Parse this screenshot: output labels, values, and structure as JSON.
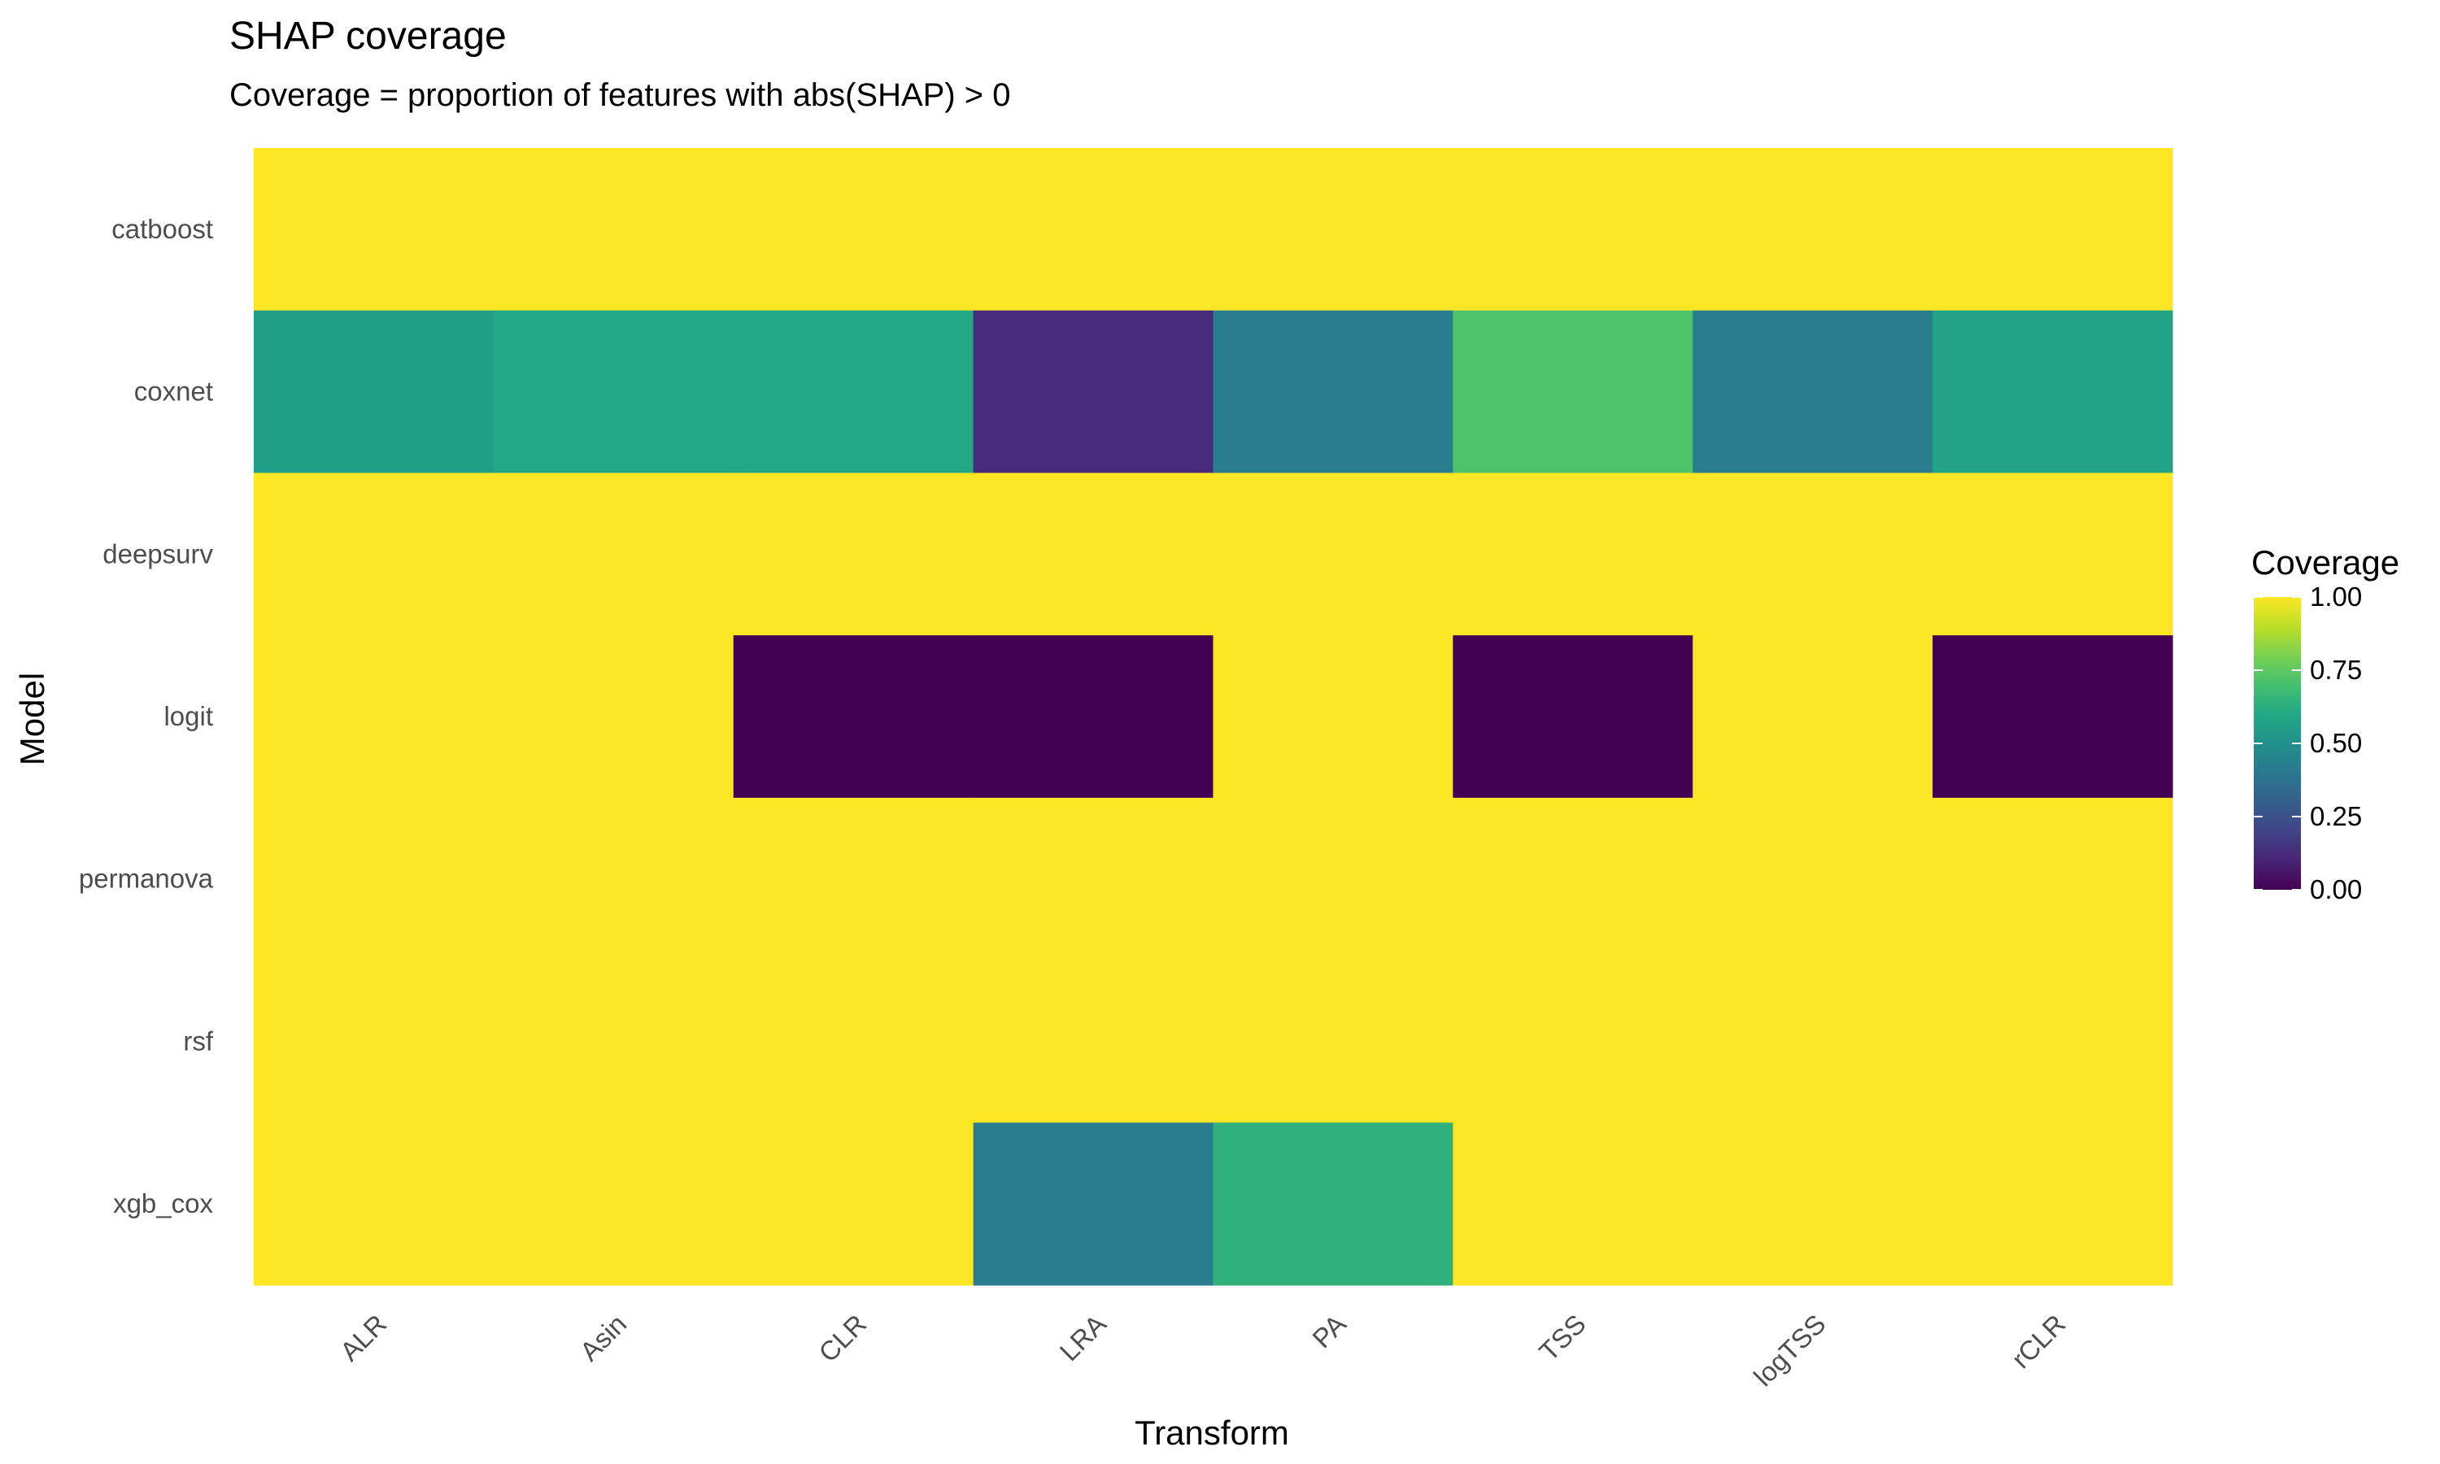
{
  "chart_data": {
    "type": "heatmap",
    "title": "SHAP coverage",
    "subtitle": "Coverage = proportion of features with abs(SHAP) > 0",
    "xlabel": "Transform",
    "ylabel": "Model",
    "x_categories": [
      "ALR",
      "Asin",
      "CLR",
      "LRA",
      "PA",
      "TSS",
      "logTSS",
      "rCLR"
    ],
    "y_categories": [
      "catboost",
      "coxnet",
      "deepsurv",
      "logit",
      "permanova",
      "rsf",
      "xgb_cox"
    ],
    "values": [
      [
        1.0,
        1.0,
        1.0,
        1.0,
        1.0,
        1.0,
        1.0,
        1.0
      ],
      [
        0.56,
        0.6,
        0.6,
        0.12,
        0.42,
        0.72,
        0.42,
        0.58
      ],
      [
        1.0,
        1.0,
        1.0,
        1.0,
        1.0,
        1.0,
        1.0,
        1.0
      ],
      [
        1.0,
        1.0,
        0.0,
        0.0,
        1.0,
        0.0,
        1.0,
        0.0
      ],
      [
        1.0,
        1.0,
        1.0,
        1.0,
        1.0,
        1.0,
        1.0,
        1.0
      ],
      [
        1.0,
        1.0,
        1.0,
        1.0,
        1.0,
        1.0,
        1.0,
        1.0
      ],
      [
        1.0,
        1.0,
        1.0,
        0.42,
        0.64,
        1.0,
        1.0,
        1.0
      ]
    ],
    "color_scale": "viridis",
    "color_range": [
      0,
      1
    ],
    "legend": {
      "title": "Coverage",
      "ticks": [
        1.0,
        0.75,
        0.5,
        0.25,
        0.0
      ],
      "tick_labels": [
        "1.00",
        "0.75",
        "0.50",
        "0.25",
        "0.00"
      ],
      "placement": "right"
    },
    "grid": false
  }
}
